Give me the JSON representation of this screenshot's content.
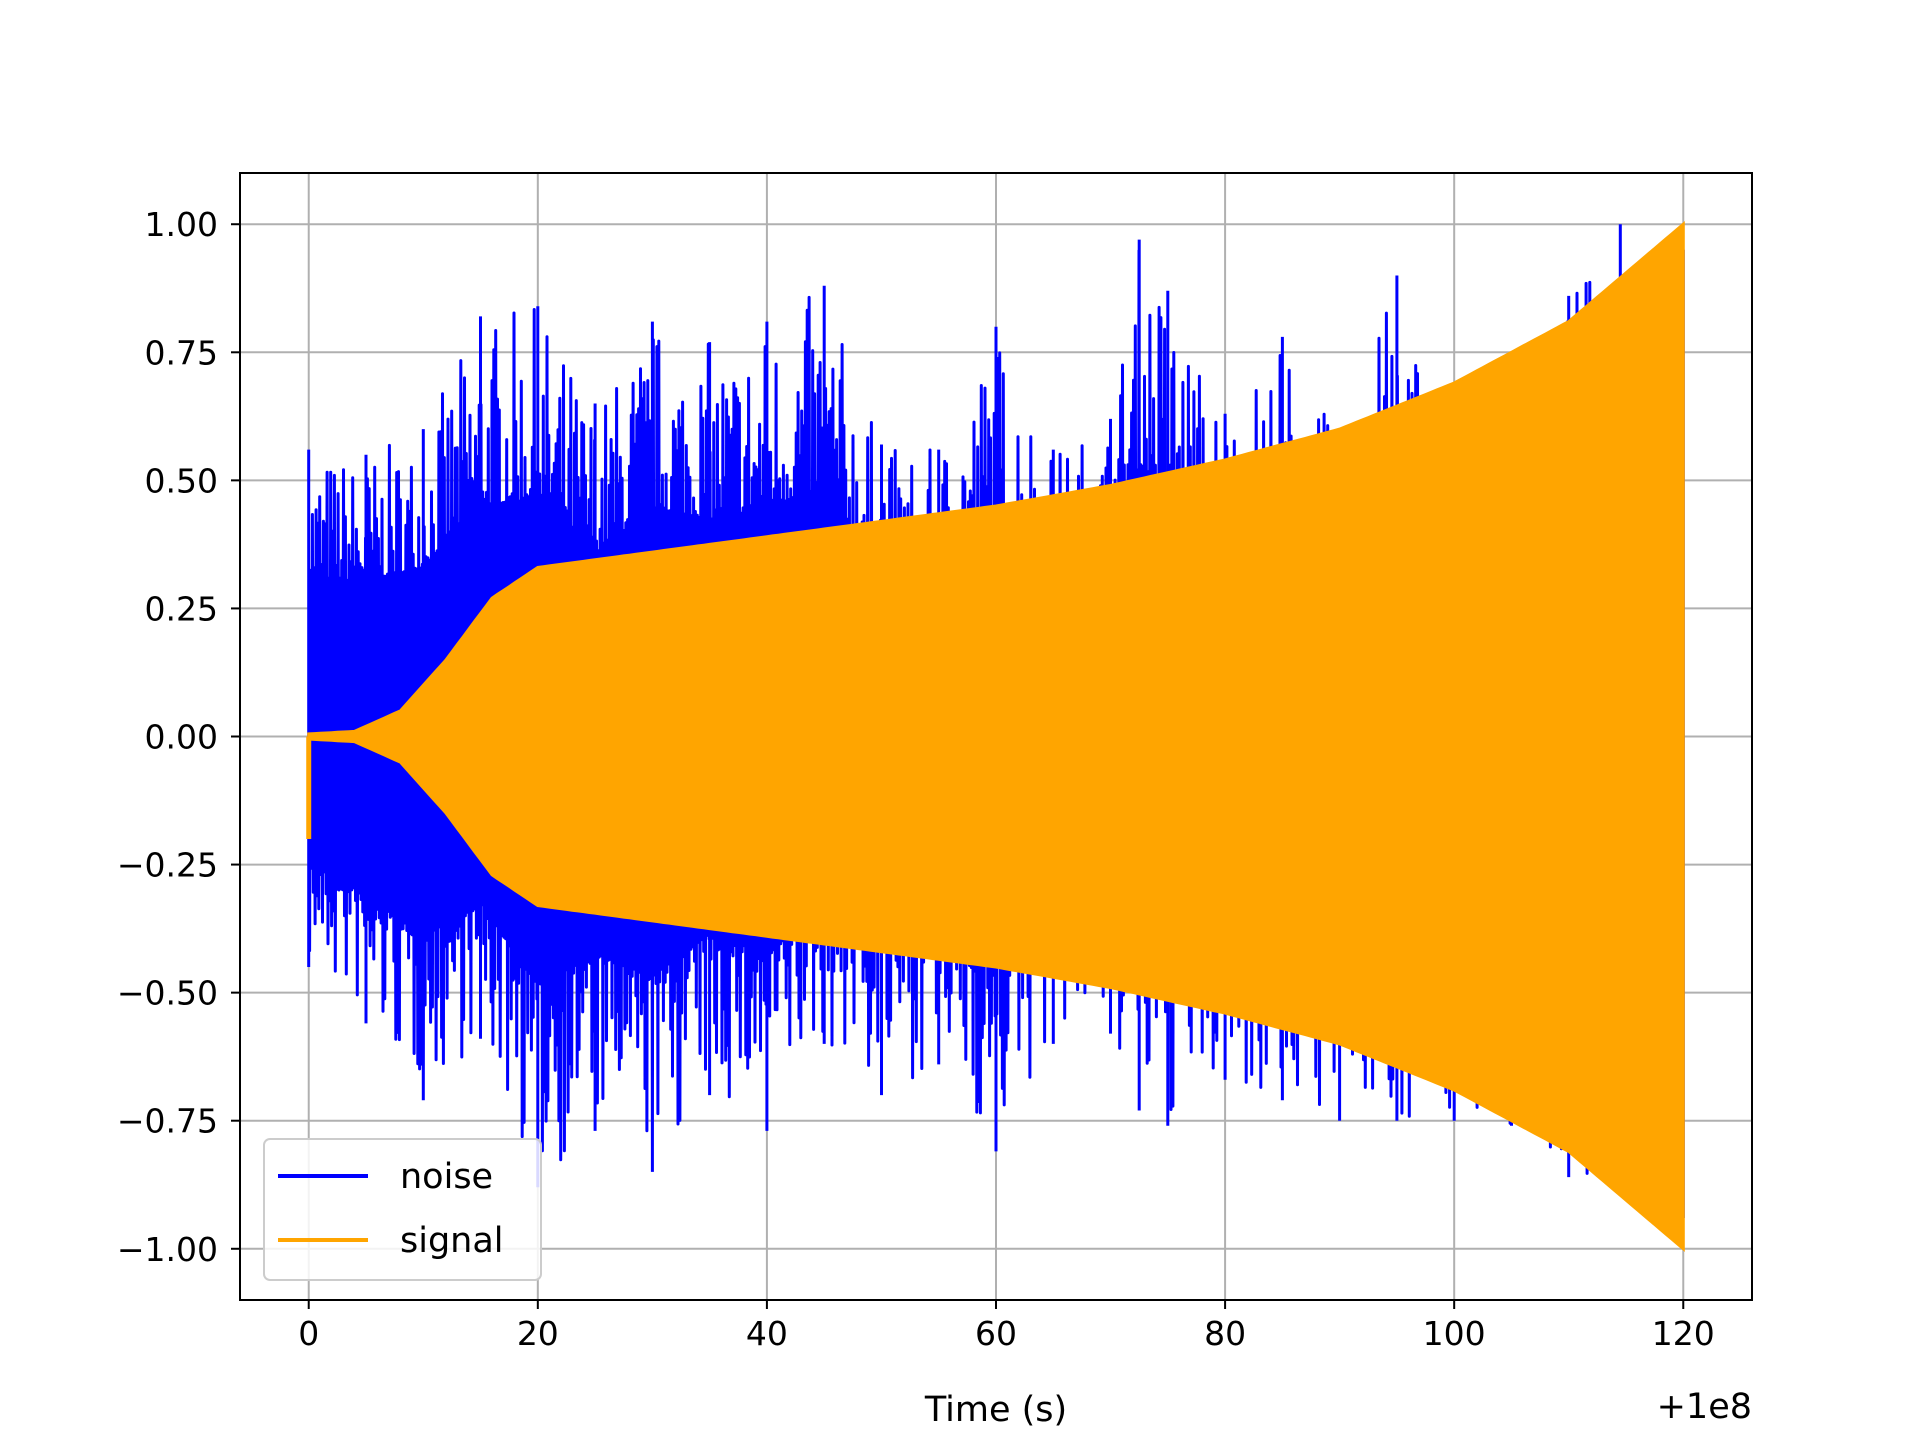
{
  "chart_data": {
    "type": "line",
    "title": "",
    "xlabel": "Time (s)",
    "ylabel": "",
    "x_offset_label": "+1e8",
    "xlim": [
      -6,
      126
    ],
    "ylim": [
      -1.1,
      1.1
    ],
    "grid": true,
    "legend_position": "lower-left",
    "x_ticks": [
      {
        "value": 0,
        "label": "0"
      },
      {
        "value": 20,
        "label": "20"
      },
      {
        "value": 40,
        "label": "40"
      },
      {
        "value": 60,
        "label": "60"
      },
      {
        "value": 80,
        "label": "80"
      },
      {
        "value": 100,
        "label": "100"
      },
      {
        "value": 120,
        "label": "120"
      }
    ],
    "y_ticks": [
      {
        "value": 1.0,
        "label": "1.00"
      },
      {
        "value": 0.75,
        "label": "0.75"
      },
      {
        "value": 0.5,
        "label": "0.50"
      },
      {
        "value": 0.25,
        "label": "0.25"
      },
      {
        "value": 0.0,
        "label": "0.00"
      },
      {
        "value": -0.25,
        "label": "−0.25"
      },
      {
        "value": -0.5,
        "label": "−0.50"
      },
      {
        "value": -0.75,
        "label": "−0.75"
      },
      {
        "value": -1.0,
        "label": "−1.00"
      }
    ],
    "series": [
      {
        "name": "noise",
        "color": "#0000ff",
        "x": [
          0,
          5,
          10,
          15,
          20,
          25,
          30,
          35,
          40,
          45,
          50,
          55,
          60,
          65,
          70,
          72.5,
          75,
          80,
          85,
          90,
          95,
          100,
          105,
          110,
          114.5,
          120
        ],
        "upper": [
          0.56,
          0.55,
          0.6,
          0.82,
          0.84,
          0.65,
          0.81,
          0.77,
          0.81,
          0.88,
          0.57,
          0.56,
          0.8,
          0.56,
          0.62,
          0.97,
          0.87,
          0.63,
          0.78,
          0.58,
          0.9,
          0.58,
          0.54,
          0.86,
          1.0,
          0.95
        ],
        "lower": [
          -0.45,
          -0.56,
          -0.71,
          -0.59,
          -0.88,
          -0.77,
          -0.85,
          -0.7,
          -0.77,
          -0.6,
          -0.7,
          -0.64,
          -0.81,
          -0.6,
          -0.58,
          -0.73,
          -0.76,
          -0.67,
          -0.71,
          -0.75,
          -0.75,
          -0.75,
          -0.76,
          -0.86,
          -0.88,
          -0.94
        ]
      },
      {
        "name": "signal",
        "color": "#ffa500",
        "x": [
          0,
          4,
          8,
          12,
          16,
          20,
          30,
          40,
          50,
          60,
          70,
          80,
          90,
          100,
          110,
          120
        ],
        "envelope": [
          0.005,
          0.01,
          0.05,
          0.15,
          0.27,
          0.33,
          0.36,
          0.39,
          0.42,
          0.45,
          0.49,
          0.54,
          0.6,
          0.69,
          0.81,
          1.0
        ],
        "start_value": -0.2
      }
    ]
  }
}
